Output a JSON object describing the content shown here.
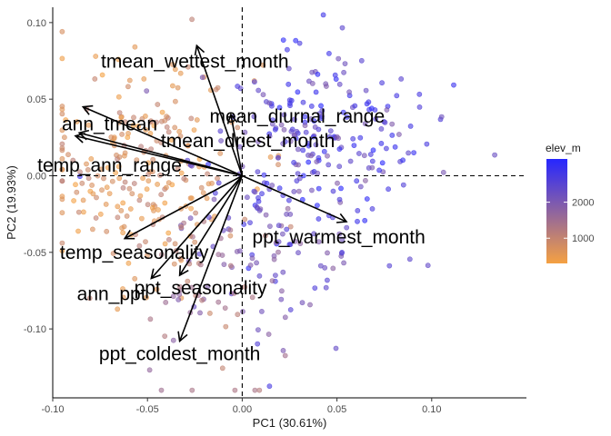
{
  "chart_data": {
    "type": "scatter",
    "subtype": "pca-biplot",
    "title": "",
    "xlabel": "PC1 (30.61%)",
    "ylabel": "PC2 (19.93%)",
    "xlim": [
      -0.1,
      0.15
    ],
    "ylim": [
      -0.145,
      0.11
    ],
    "x_ticks": [
      -0.1,
      -0.05,
      0.0,
      0.05,
      0.1
    ],
    "x_tick_labels": [
      "-0.10",
      "-0.05",
      "0.00",
      "0.05",
      "0.10"
    ],
    "y_ticks": [
      -0.1,
      -0.05,
      0.0,
      0.05,
      0.1
    ],
    "y_tick_labels": [
      "-0.10",
      "-0.05",
      "0.00",
      "0.05",
      "0.10"
    ],
    "grid": false,
    "reference_lines": {
      "x": 0,
      "y": 0,
      "style": "dashed"
    },
    "color_scale": {
      "title": "elev_m",
      "low_color": "#f5a142",
      "high_color": "#2626ff",
      "range": [
        300,
        3200
      ],
      "ticks": [
        1000,
        2000
      ],
      "tick_labels": [
        "1000",
        "2000"
      ],
      "legend_position": "right"
    },
    "loadings": [
      {
        "name": "tmean_wettest_month",
        "x": -0.024,
        "y": 0.085
      },
      {
        "name": "mean_diurnal_range",
        "x": -0.006,
        "y": 0.04
      },
      {
        "name": "ann_tmean",
        "x": -0.084,
        "y": 0.045
      },
      {
        "name": "tmean_driest_month",
        "x": -0.088,
        "y": 0.026
      },
      {
        "name": "temp_ann_range",
        "x": -0.086,
        "y": 0.028
      },
      {
        "name": "ppt_warmest_month",
        "x": 0.055,
        "y": -0.03
      },
      {
        "name": "temp_seasonality",
        "x": -0.062,
        "y": -0.041
      },
      {
        "name": "ann_ppt",
        "x": -0.048,
        "y": -0.067
      },
      {
        "name": "ppt_seasonality",
        "x": -0.033,
        "y": -0.065
      },
      {
        "name": "ppt_coldest_month",
        "x": -0.033,
        "y": -0.108
      }
    ]
  }
}
